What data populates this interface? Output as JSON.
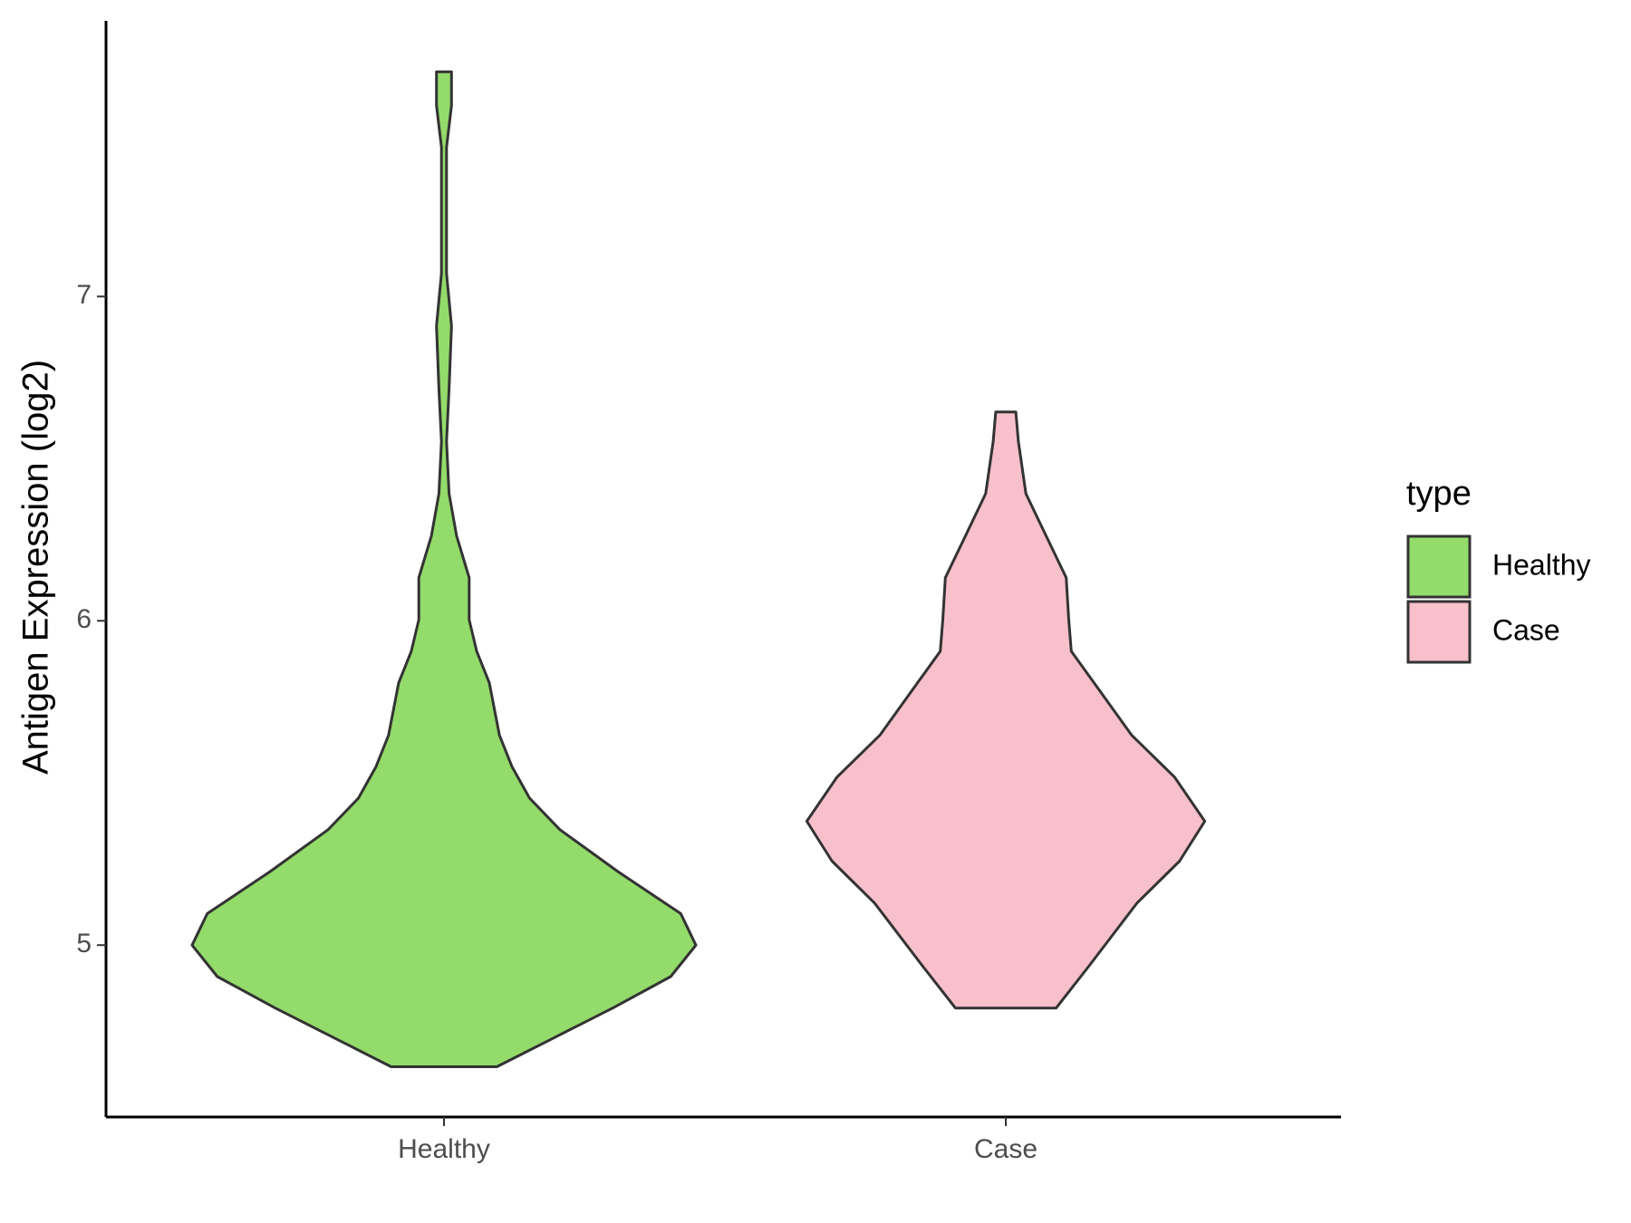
{
  "chart_data": {
    "type": "violin",
    "ylabel": "Antigen Expression (log2)",
    "categories": [
      "Healthy",
      "Case"
    ],
    "ylim": [
      4.47,
      7.85
    ],
    "yticks": [
      5,
      6,
      7
    ],
    "legend_title": "type",
    "legend_position": "right",
    "outline_color": "#333333",
    "series": [
      {
        "name": "Healthy",
        "color": "#93DB6A",
        "y": [
          4.625,
          4.806,
          4.903,
          5.0,
          5.097,
          5.227,
          5.356,
          5.453,
          5.55,
          5.647,
          5.809,
          5.906,
          6.003,
          6.133,
          6.262,
          6.392,
          6.553,
          6.715,
          6.909,
          7.071,
          7.265,
          7.46,
          7.589,
          7.693
        ],
        "width": [
          0.21,
          0.67,
          0.9,
          1.0,
          0.94,
          0.69,
          0.46,
          0.34,
          0.27,
          0.22,
          0.18,
          0.13,
          0.1,
          0.1,
          0.05,
          0.02,
          0.01,
          0.02,
          0.03,
          0.01,
          0.01,
          0.01,
          0.03,
          0.03
        ]
      },
      {
        "name": "Case",
        "color": "#F8C0CB",
        "y": [
          4.806,
          4.935,
          5.129,
          5.259,
          5.382,
          5.518,
          5.647,
          5.777,
          5.906,
          6.003,
          6.133,
          6.262,
          6.392,
          6.553,
          6.644
        ],
        "width": [
          0.2,
          0.33,
          0.52,
          0.69,
          0.79,
          0.67,
          0.5,
          0.38,
          0.26,
          0.25,
          0.24,
          0.16,
          0.08,
          0.05,
          0.04
        ]
      }
    ]
  }
}
